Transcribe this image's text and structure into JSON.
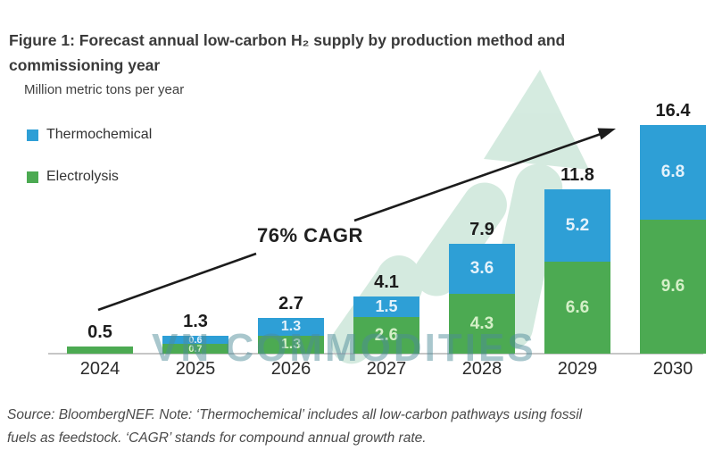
{
  "figure": {
    "title_line1": "Figure 1: Forecast annual low-carbon H₂ supply by production method and",
    "title_line2": "commissioning year",
    "units_label": "Million metric tons per year",
    "source_line1": "Source: BloombergNEF. Note: ‘Thermochemical’ includes all low-carbon pathways using fossil",
    "source_line2": "fuels as feedstock. ‘CAGR’ stands for compound annual growth rate.",
    "watermark_text": "VN COMMODITIES",
    "watermark_color": "#4d8b99",
    "watermark_shape_color": "#c9e5d7"
  },
  "chart_data": {
    "type": "bar",
    "stacked": true,
    "title": "Forecast annual low-carbon H₂ supply by production method and commissioning year",
    "ylabel": "Million metric tons per year",
    "xlabel": "",
    "grid": false,
    "legend_position": "top-left",
    "ylim": [
      0,
      17
    ],
    "categories": [
      "2024",
      "2025",
      "2026",
      "2027",
      "2028",
      "2029",
      "2030"
    ],
    "series": [
      {
        "name": "Electrolysis",
        "color": "#4caa52",
        "values": [
          0.5,
          0.7,
          1.3,
          2.6,
          4.3,
          6.6,
          9.6
        ]
      },
      {
        "name": "Thermochemical",
        "color": "#2e9fd6",
        "values": [
          0,
          0.6,
          1.3,
          1.5,
          3.6,
          5.2,
          6.8
        ]
      }
    ],
    "segment_labels": {
      "electrolysis": [
        "",
        "0.7",
        "1.3",
        "2.6",
        "4.3",
        "6.6",
        "9.6"
      ],
      "thermochemical": [
        "",
        "0.6",
        "1.3",
        "1.5",
        "3.6",
        "5.2",
        "6.8"
      ]
    },
    "totals": [
      "0.5",
      "1.3",
      "2.7",
      "4.1",
      "7.9",
      "11.8",
      "16.4"
    ],
    "annotation": "76% CAGR"
  }
}
